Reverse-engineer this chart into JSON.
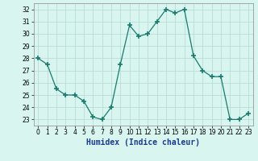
{
  "x": [
    0,
    1,
    2,
    3,
    4,
    5,
    6,
    7,
    8,
    9,
    10,
    11,
    12,
    13,
    14,
    15,
    16,
    17,
    18,
    19,
    20,
    21,
    22,
    23
  ],
  "y": [
    28,
    27.5,
    25.5,
    25,
    25,
    24.5,
    23.2,
    23,
    24,
    27.5,
    30.7,
    29.8,
    30,
    31,
    32,
    31.7,
    32,
    28.2,
    27,
    26.5,
    26.5,
    23,
    23,
    23.5
  ],
  "line_color": "#1a7a6e",
  "marker": "+",
  "marker_size": 4,
  "bg_color": "#d8f5f0",
  "grid_color": "#b8ddd8",
  "xlabel": "Humidex (Indice chaleur)",
  "ylabel": "",
  "xlim": [
    -0.5,
    23.5
  ],
  "ylim": [
    22.5,
    32.5
  ],
  "xticks": [
    0,
    1,
    2,
    3,
    4,
    5,
    6,
    7,
    8,
    9,
    10,
    11,
    12,
    13,
    14,
    15,
    16,
    17,
    18,
    19,
    20,
    21,
    22,
    23
  ],
  "yticks": [
    23,
    24,
    25,
    26,
    27,
    28,
    29,
    30,
    31,
    32
  ],
  "tick_fontsize": 5.5,
  "xlabel_fontsize": 7
}
